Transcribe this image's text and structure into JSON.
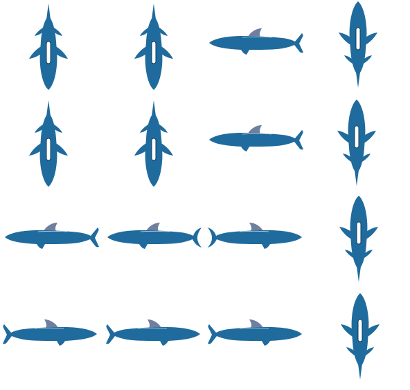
{
  "sprite_sheet": {
    "background_color": "#ffffff",
    "body_color": "#1f6b9e",
    "fin_color": "#6f7f9f",
    "marker_color": "#ffffff",
    "marker_outline_color": "#0d3b5a",
    "sprites": [
      {
        "name": "shark-top-down-1",
        "view": "top-down",
        "facing": "up"
      },
      {
        "name": "shark-top-down-2",
        "view": "top-down",
        "facing": "up"
      },
      {
        "name": "shark-side-1",
        "view": "side",
        "facing": "left"
      },
      {
        "name": "shark-top-down-3",
        "view": "top-down",
        "facing": "down"
      },
      {
        "name": "shark-top-down-4",
        "view": "top-down",
        "facing": "up"
      },
      {
        "name": "shark-top-down-5",
        "view": "top-down",
        "facing": "up"
      },
      {
        "name": "shark-side-2",
        "view": "side",
        "facing": "left"
      },
      {
        "name": "shark-top-down-6",
        "view": "top-down",
        "facing": "down"
      },
      {
        "name": "shark-side-3",
        "view": "side",
        "facing": "left"
      },
      {
        "name": "shark-side-4",
        "view": "side",
        "facing": "left"
      },
      {
        "name": "shark-side-5",
        "view": "side",
        "facing": "right"
      },
      {
        "name": "shark-top-down-7",
        "view": "top-down",
        "facing": "down"
      },
      {
        "name": "shark-side-6",
        "view": "side",
        "facing": "right"
      },
      {
        "name": "shark-side-7",
        "view": "side",
        "facing": "right"
      },
      {
        "name": "shark-side-8",
        "view": "side",
        "facing": "right"
      },
      {
        "name": "shark-top-down-8",
        "view": "top-down",
        "facing": "down"
      }
    ]
  }
}
